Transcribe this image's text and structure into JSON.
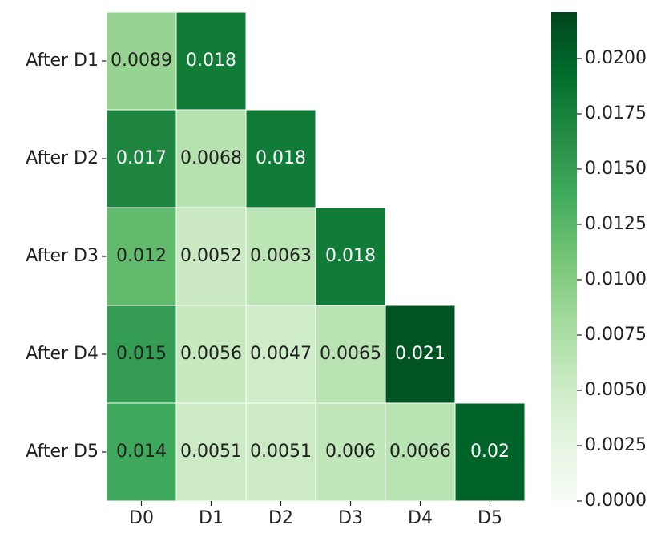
{
  "chart_data": {
    "type": "heatmap",
    "rows": [
      "After D1",
      "After D2",
      "After D3",
      "After D4",
      "After D5"
    ],
    "columns": [
      "D0",
      "D1",
      "D2",
      "D3",
      "D4",
      "D5"
    ],
    "values": [
      [
        0.0089,
        0.018,
        null,
        null,
        null,
        null
      ],
      [
        0.017,
        0.0068,
        0.018,
        null,
        null,
        null
      ],
      [
        0.012,
        0.0052,
        0.0063,
        0.018,
        null,
        null
      ],
      [
        0.015,
        0.0056,
        0.0047,
        0.0065,
        0.021,
        null
      ],
      [
        0.014,
        0.0051,
        0.0051,
        0.006,
        0.0066,
        0.02
      ]
    ],
    "colorbar_lim": [
      0,
      0.0221
    ],
    "colorbar_ticks": [
      {
        "value": 0,
        "label": "0.0000"
      },
      {
        "value": 0.0025,
        "label": "0.0025"
      },
      {
        "value": 0.005,
        "label": "0.0050"
      },
      {
        "value": 0.0075,
        "label": "0.0075"
      },
      {
        "value": 0.01,
        "label": "0.0100"
      },
      {
        "value": 0.0125,
        "label": "0.0125"
      },
      {
        "value": 0.015,
        "label": "0.0150"
      },
      {
        "value": 0.0175,
        "label": "0.0175"
      },
      {
        "value": 0.02,
        "label": "0.0200"
      }
    ],
    "colormap": [
      "#f7fcf5",
      "#e5f5e0",
      "#c7e9c0",
      "#a1d99b",
      "#74c476",
      "#41ab5d",
      "#238b45",
      "#006d2c",
      "#00441b"
    ]
  }
}
